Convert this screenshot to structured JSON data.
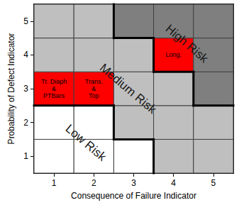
{
  "chart_data": {
    "type": "risk_matrix",
    "x_label": "Consequence of Failure Indicator",
    "y_label": "Probability of Defect Indicator",
    "xlim": [
      0.5,
      5.5
    ],
    "ylim": [
      0.5,
      5.5
    ],
    "xticks": [
      1,
      2,
      3,
      4,
      5
    ],
    "yticks": [
      1,
      2,
      3,
      4,
      5
    ],
    "zones": [
      {
        "name": "Low Risk"
      },
      {
        "name": "Medium Risk"
      },
      {
        "name": "High Risk"
      }
    ],
    "cells": [
      {
        "x": 1,
        "y": 1,
        "zone": "Low Risk",
        "color": "#ffffff"
      },
      {
        "x": 2,
        "y": 1,
        "zone": "Low Risk",
        "color": "#ffffff"
      },
      {
        "x": 3,
        "y": 1,
        "zone": "Low Risk",
        "color": "#ffffff"
      },
      {
        "x": 4,
        "y": 1,
        "zone": "Medium Risk",
        "color": "#bfbfbf"
      },
      {
        "x": 5,
        "y": 1,
        "zone": "Medium Risk",
        "color": "#bfbfbf"
      },
      {
        "x": 1,
        "y": 2,
        "zone": "Low Risk",
        "color": "#ffffff"
      },
      {
        "x": 2,
        "y": 2,
        "zone": "Low Risk",
        "color": "#ffffff"
      },
      {
        "x": 3,
        "y": 2,
        "zone": "Medium Risk",
        "color": "#bfbfbf"
      },
      {
        "x": 4,
        "y": 2,
        "zone": "Medium Risk",
        "color": "#bfbfbf"
      },
      {
        "x": 5,
        "y": 2,
        "zone": "Medium Risk",
        "color": "#bfbfbf"
      },
      {
        "x": 1,
        "y": 3,
        "zone": "Medium Risk",
        "color": "#ff0000",
        "label": [
          "Tr. Diaph",
          "&",
          "PTBars"
        ]
      },
      {
        "x": 2,
        "y": 3,
        "zone": "Medium Risk",
        "color": "#ff0000",
        "label": [
          "Trans.",
          "&",
          "Top"
        ]
      },
      {
        "x": 3,
        "y": 3,
        "zone": "Medium Risk",
        "color": "#bfbfbf"
      },
      {
        "x": 4,
        "y": 3,
        "zone": "Medium Risk",
        "color": "#bfbfbf"
      },
      {
        "x": 5,
        "y": 3,
        "zone": "High Risk",
        "color": "#7f7f7f"
      },
      {
        "x": 1,
        "y": 4,
        "zone": "Medium Risk",
        "color": "#bfbfbf"
      },
      {
        "x": 2,
        "y": 4,
        "zone": "Medium Risk",
        "color": "#bfbfbf"
      },
      {
        "x": 3,
        "y": 4,
        "zone": "Medium Risk",
        "color": "#bfbfbf"
      },
      {
        "x": 4,
        "y": 4,
        "zone": "High Risk",
        "color": "#ff0000",
        "label": [
          "Long."
        ]
      },
      {
        "x": 5,
        "y": 4,
        "zone": "High Risk",
        "color": "#7f7f7f"
      },
      {
        "x": 1,
        "y": 5,
        "zone": "Medium Risk",
        "color": "#bfbfbf"
      },
      {
        "x": 2,
        "y": 5,
        "zone": "Medium Risk",
        "color": "#bfbfbf"
      },
      {
        "x": 3,
        "y": 5,
        "zone": "High Risk",
        "color": "#7f7f7f"
      },
      {
        "x": 4,
        "y": 5,
        "zone": "High Risk",
        "color": "#7f7f7f"
      },
      {
        "x": 5,
        "y": 5,
        "zone": "High Risk",
        "color": "#7f7f7f"
      }
    ]
  }
}
